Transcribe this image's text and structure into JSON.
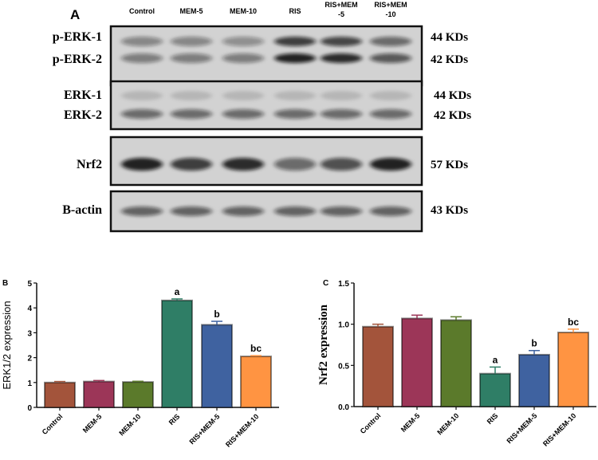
{
  "panel_a": {
    "label": "A",
    "lanes": [
      {
        "line1": "Control",
        "line2": ""
      },
      {
        "line1": "MEM-5",
        "line2": ""
      },
      {
        "line1": "MEM-10",
        "line2": ""
      },
      {
        "line1": "RIS",
        "line2": ""
      },
      {
        "line1": "RIS+MEM",
        "line2": "-5"
      },
      {
        "line1": "RIS+MEM",
        "line2": "-10"
      }
    ],
    "blots": [
      {
        "labels": [
          "p-ERK-1",
          "p-ERK-2"
        ],
        "sizes": [
          "44 KDs",
          "42 KDs"
        ]
      },
      {
        "labels": [
          "ERK-1",
          "ERK-2"
        ],
        "sizes": [
          "44 KDs",
          "42 KDs"
        ]
      },
      {
        "labels": [
          "Nrf2"
        ],
        "sizes": [
          "57 KDs"
        ]
      },
      {
        "labels": [
          "B-actin"
        ],
        "sizes": [
          "43 KDs"
        ]
      }
    ]
  },
  "chart_data": [
    {
      "panel": "B",
      "type": "bar",
      "ylabel": "ERK1/2 expression",
      "xlabel": "",
      "categories": [
        "Control",
        "MEM-5",
        "MEM-10",
        "RIS",
        "RIS+MEM-5",
        "RIS+MEM-10"
      ],
      "values": [
        1.0,
        1.04,
        1.02,
        4.3,
        3.32,
        2.05
      ],
      "errors": [
        0.04,
        0.04,
        0.03,
        0.06,
        0.14,
        0.03
      ],
      "annotations": [
        "",
        "",
        "",
        "a",
        "b",
        "bc"
      ],
      "ylim": [
        0,
        5
      ],
      "yticks": [
        "0",
        "1",
        "2",
        "3",
        "4",
        "5"
      ],
      "grid": false,
      "colors": [
        "#a3543b",
        "#9c3658",
        "#5b7a2b",
        "#2f7e66",
        "#3f62a0",
        "#ff9442"
      ]
    },
    {
      "panel": "C",
      "type": "bar",
      "ylabel": "Nrf2 expression",
      "xlabel": "",
      "categories": [
        "Control",
        "MEM-5",
        "MEM-10",
        "RIS",
        "RIS+MEM-5",
        "RIS+MEM-10"
      ],
      "values": [
        0.97,
        1.07,
        1.05,
        0.4,
        0.63,
        0.9
      ],
      "errors": [
        0.03,
        0.04,
        0.04,
        0.08,
        0.05,
        0.04
      ],
      "annotations": [
        "",
        "",
        "",
        "a",
        "b",
        "bc"
      ],
      "ylim": [
        0,
        1.5
      ],
      "yticks": [
        "0.0",
        "0.5",
        "1.0",
        "1.5"
      ],
      "grid": false,
      "colors": [
        "#a3543b",
        "#9c3658",
        "#5b7a2b",
        "#2f7e66",
        "#3f62a0",
        "#ff9442"
      ]
    }
  ]
}
